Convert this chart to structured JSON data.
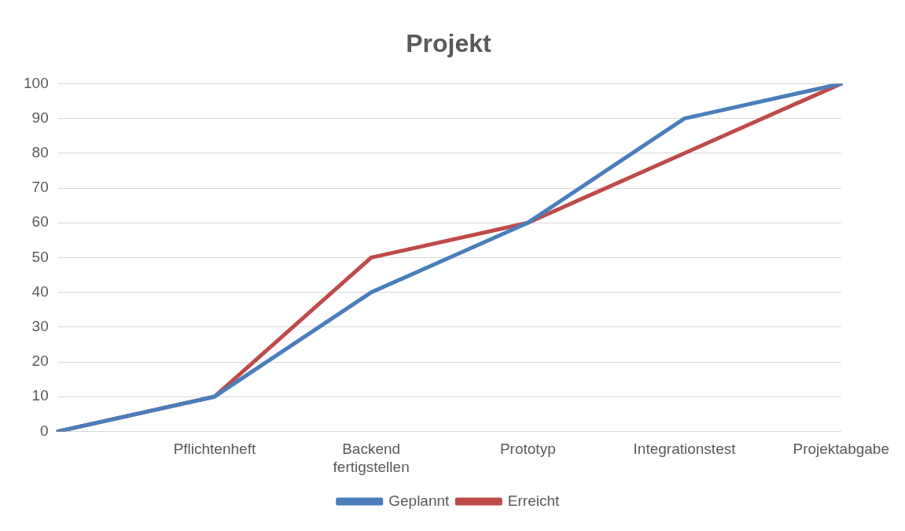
{
  "chart_data": {
    "type": "line",
    "title": "Projekt",
    "categories": [
      null,
      "Pflichtenheft",
      "Backend fertigstellen",
      "Prototyp",
      "Integrationstest",
      "Projektabgabe"
    ],
    "series": [
      {
        "name": "Geplannt",
        "color": "#4a7ebb",
        "values": [
          0,
          10,
          40,
          60,
          90,
          100
        ]
      },
      {
        "name": "Erreicht",
        "color": "#be4b48",
        "values": [
          0,
          10,
          50,
          60,
          80,
          100
        ]
      }
    ],
    "ylim": [
      0,
      100
    ],
    "yticks": [
      0,
      10,
      20,
      30,
      40,
      50,
      60,
      70,
      80,
      90,
      100
    ],
    "grid": "y",
    "legend": "bottom",
    "marker": "none",
    "line_style": "solid"
  }
}
